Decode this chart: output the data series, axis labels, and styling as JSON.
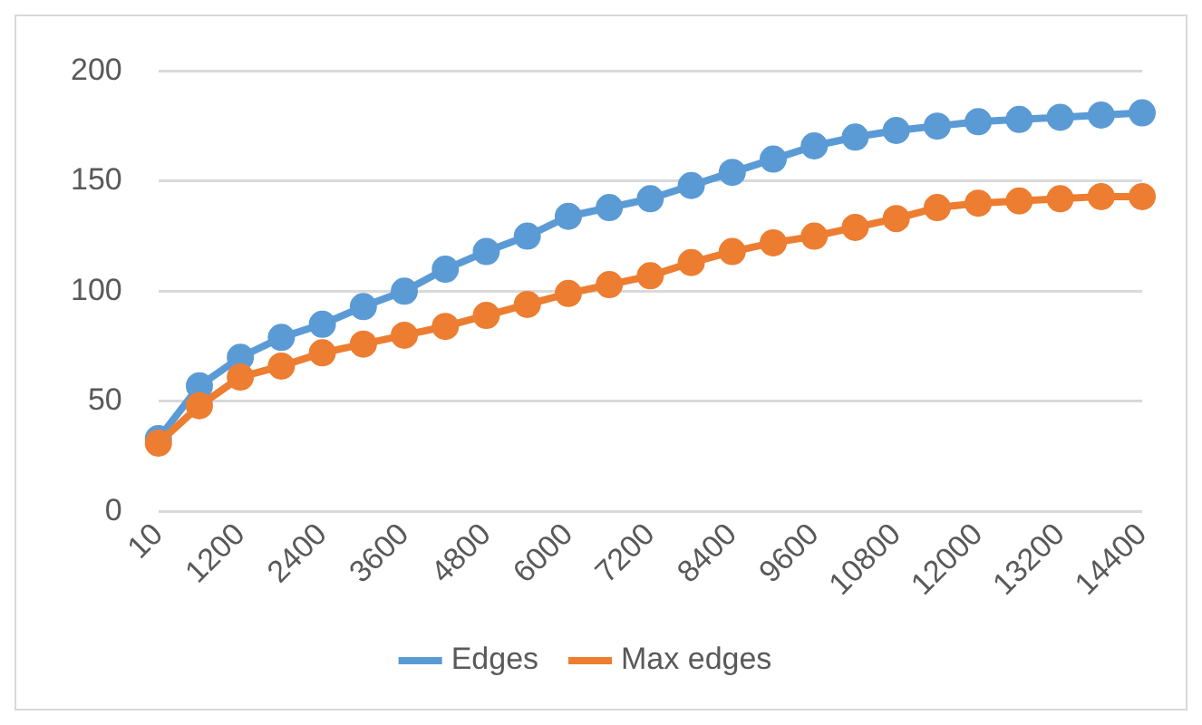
{
  "chart_data": {
    "type": "line",
    "categories": [
      "10",
      null,
      "1200",
      null,
      "2400",
      null,
      "3600",
      null,
      "4800",
      null,
      "6000",
      null,
      "7200",
      null,
      "8400",
      null,
      "9600",
      null,
      "10800",
      null,
      "12000",
      null,
      "13200",
      null,
      "14400"
    ],
    "series": [
      {
        "name": "Edges",
        "color": "#5b9bd5",
        "values": [
          33,
          57,
          70,
          79,
          85,
          93,
          100,
          110,
          118,
          125,
          134,
          138,
          142,
          148,
          154,
          160,
          166,
          170,
          173,
          175,
          177,
          178,
          179,
          180,
          181
        ]
      },
      {
        "name": "Max edges",
        "color": "#ed7d31",
        "values": [
          31,
          48,
          61,
          66,
          72,
          76,
          80,
          84,
          89,
          94,
          99,
          103,
          107,
          113,
          118,
          122,
          125,
          129,
          133,
          138,
          140,
          141,
          142,
          143,
          143
        ]
      }
    ],
    "ylim": [
      0,
      200
    ],
    "yticks": [
      0,
      50,
      100,
      150,
      200
    ],
    "grid": "y",
    "legend": "bottom",
    "marker": "circle",
    "line_style": "solid"
  }
}
